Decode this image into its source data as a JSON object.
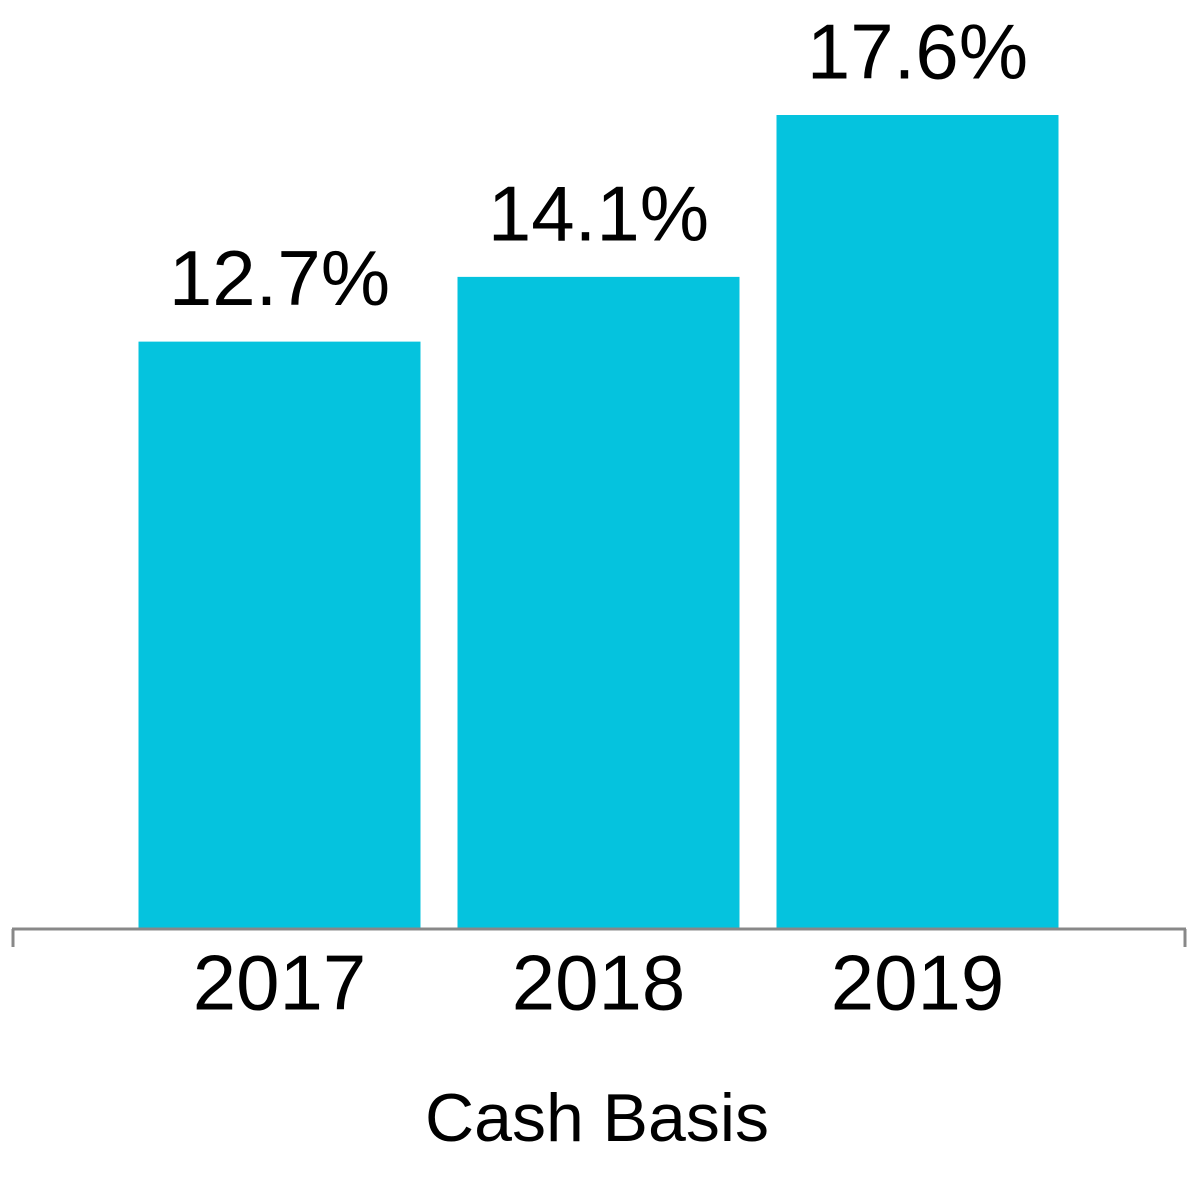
{
  "chart_data": {
    "type": "bar",
    "categories": [
      "2017",
      "2018",
      "2019"
    ],
    "values": [
      12.7,
      14.1,
      17.6
    ],
    "value_labels": [
      "12.7%",
      "14.1%",
      "17.6%"
    ],
    "color": "#05c3de",
    "x_label": "Cash Basis"
  }
}
